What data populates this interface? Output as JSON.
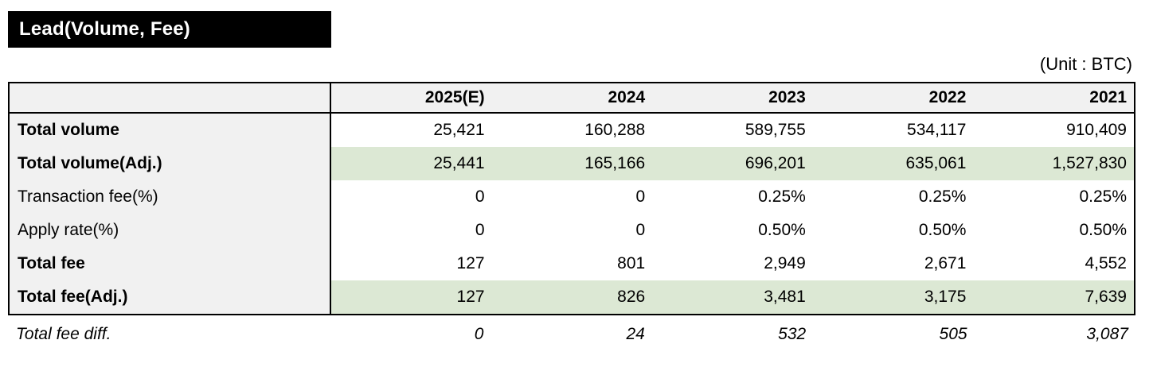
{
  "title": "Lead(Volume, Fee)",
  "unit_label": "(Unit : BTC)",
  "colors": {
    "title_bg": "#000000",
    "title_text": "#ffffff",
    "header_bg": "#f1f1f1",
    "label_column_bg": "#f1f1f1",
    "highlight_row_bg": "#dce8d4",
    "border": "#000000"
  },
  "chart_data": {
    "type": "table",
    "title": "Lead(Volume, Fee)",
    "unit": "BTC",
    "columns": [
      "",
      "2025(E)",
      "2024",
      "2023",
      "2022",
      "2021"
    ],
    "rows": [
      {
        "label": "Total volume",
        "values": [
          "25,421",
          "160,288",
          "589,755",
          "534,117",
          "910,409"
        ]
      },
      {
        "label": "Total volume(Adj.)",
        "values": [
          "25,441",
          "165,166",
          "696,201",
          "635,061",
          "1,527,830"
        ]
      },
      {
        "label": "Transaction fee(%)",
        "values": [
          "0",
          "0",
          "0.25%",
          "0.25%",
          "0.25%"
        ]
      },
      {
        "label": "Apply rate(%)",
        "values": [
          "0",
          "0",
          "0.50%",
          "0.50%",
          "0.50%"
        ]
      },
      {
        "label": "Total fee",
        "values": [
          "127",
          "801",
          "2,949",
          "2,671",
          "4,552"
        ]
      },
      {
        "label": "Total fee(Adj.)",
        "values": [
          "127",
          "826",
          "3,481",
          "3,175",
          "7,639"
        ]
      }
    ],
    "footer": {
      "label": "Total fee diff.",
      "values": [
        "0",
        "24",
        "532",
        "505",
        "3,087"
      ]
    }
  }
}
